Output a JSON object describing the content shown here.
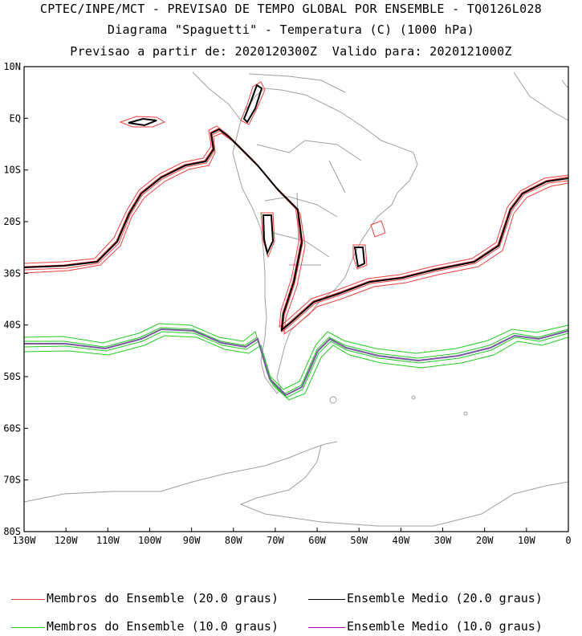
{
  "title": {
    "line1": "CPTEC/INPE/MCT - PREVISAO DE TEMPO GLOBAL POR ENSEMBLE - TQ0126L028",
    "line2": "Diagrama \"Spaguetti\" - Temperatura (C) (1000 hPa)",
    "line3": "Previsao a partir de: 2020120300Z  Valido para: 2020121000Z"
  },
  "axes": {
    "lat_labels": [
      "10N",
      "EQ",
      "10S",
      "20S",
      "30S",
      "40S",
      "50S",
      "60S",
      "70S",
      "80S"
    ],
    "lon_labels": [
      "130W",
      "120W",
      "110W",
      "100W",
      "90W",
      "80W",
      "70W",
      "60W",
      "50W",
      "40W",
      "30W",
      "20W",
      "10W",
      "0"
    ]
  },
  "colors": {
    "member20": "#f04040",
    "mean20": "#000000",
    "member10": "#22cc22",
    "mean10": "#7a5aa0",
    "coast": "#a0a0a0"
  },
  "legend": {
    "member20": "Membros do Ensemble (20.0 graus)",
    "mean20": "Ensemble Medio (20.0 graus)",
    "member10": "Membros do Ensemble (10.0 graus)",
    "mean10": "Ensemble Medio (10.0 graus)"
  }
}
